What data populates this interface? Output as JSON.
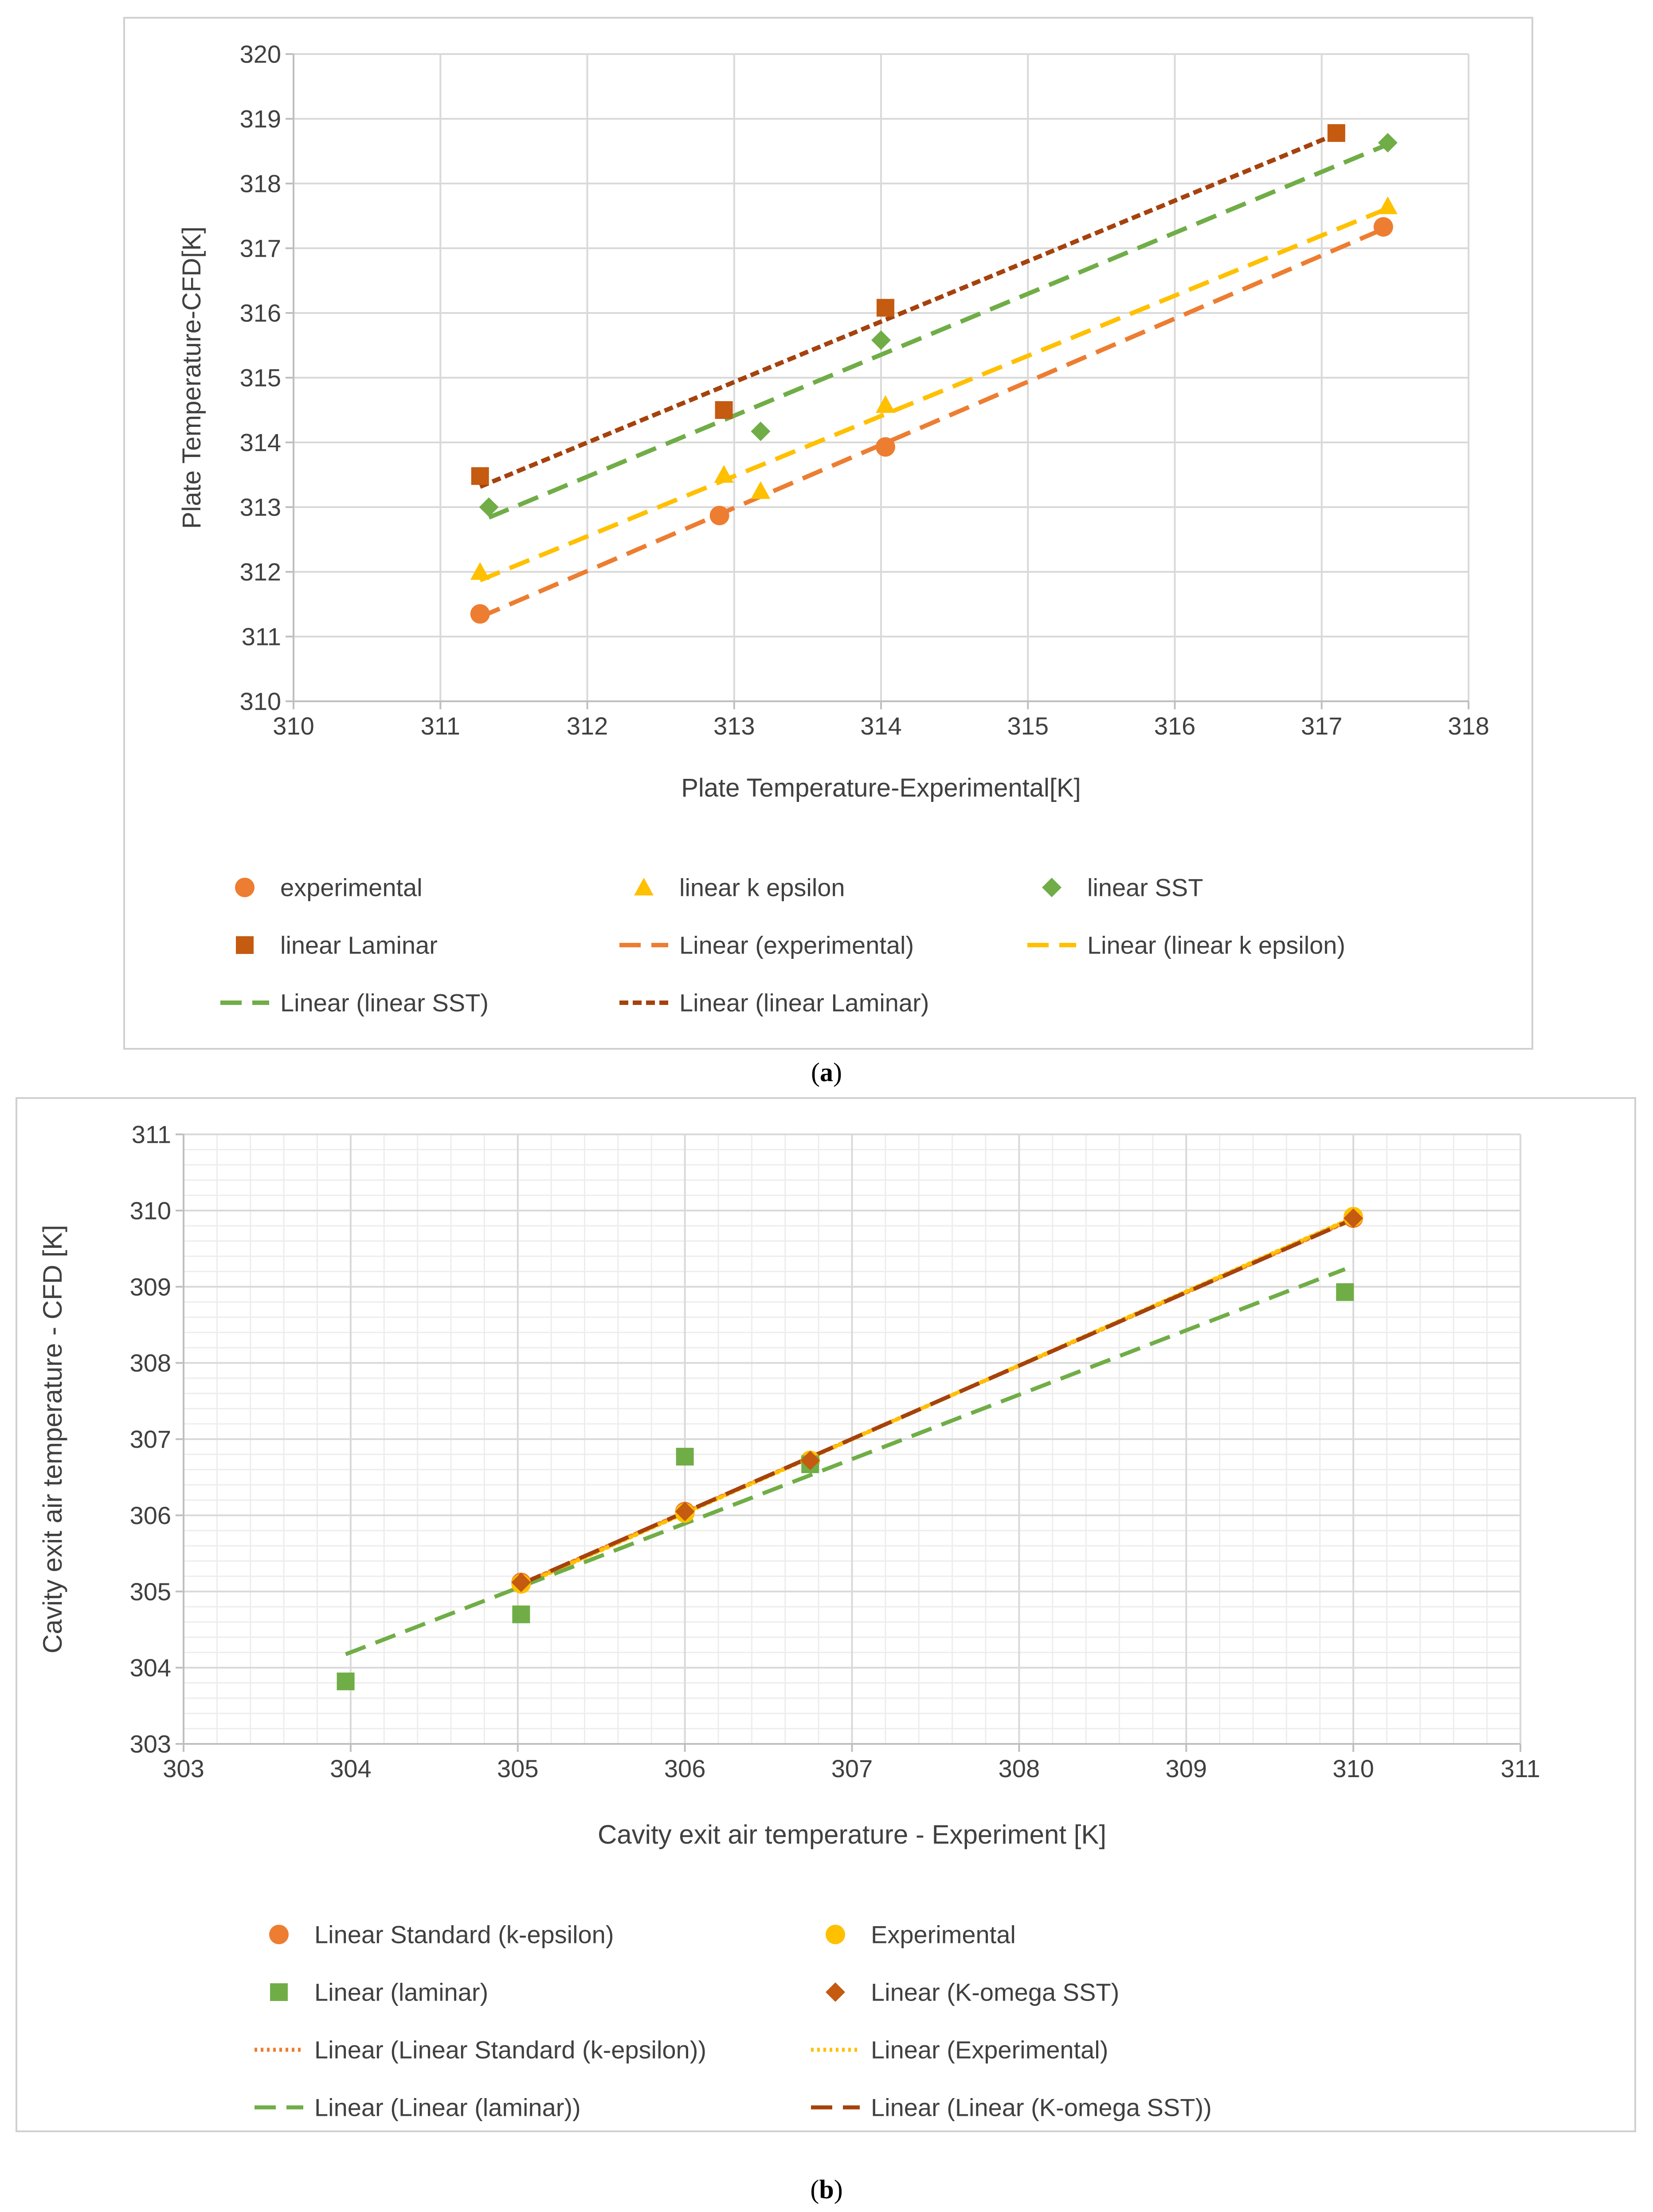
{
  "captions": {
    "a_letter": "a",
    "b_letter": "b"
  },
  "chart_data": [
    {
      "type": "scatter",
      "panel": "a",
      "xlabel": "Plate Temperature-Experimental[K]",
      "ylabel": "Plate Temperature-CFD[K]",
      "xlim": [
        310,
        318
      ],
      "ylim": [
        310,
        320
      ],
      "x_ticks": [
        "310",
        "311",
        "312",
        "313",
        "314",
        "315",
        "316",
        "317",
        "318"
      ],
      "y_ticks": [
        "310",
        "311",
        "312",
        "313",
        "314",
        "315",
        "316",
        "317",
        "318",
        "319",
        "320"
      ],
      "grid": true,
      "legend_position": "bottom",
      "series": [
        {
          "name": "experimental",
          "marker": "circle",
          "color": "#ED7D31",
          "x": [
            311.27,
            312.9,
            314.03,
            317.42
          ],
          "y": [
            311.35,
            312.87,
            313.93,
            317.33
          ],
          "trend": {
            "name": "Linear (experimental)",
            "style": "dash",
            "color": "#ED7D31",
            "x": [
              311.27,
              317.42
            ]
          }
        },
        {
          "name": "linear k epsilon",
          "marker": "triangle",
          "color": "#FFC000",
          "x": [
            311.27,
            312.93,
            313.18,
            314.03,
            317.45
          ],
          "y": [
            312.0,
            313.5,
            313.25,
            314.58,
            317.65
          ],
          "trend": {
            "name": "Linear (linear k epsilon)",
            "style": "dash",
            "color": "#FFC000",
            "x": [
              311.27,
              317.45
            ]
          }
        },
        {
          "name": "linear SST",
          "marker": "diamond",
          "color": "#70AD47",
          "x": [
            311.33,
            313.18,
            314.0,
            317.45
          ],
          "y": [
            313.0,
            314.17,
            315.58,
            318.63
          ],
          "trend": {
            "name": "Linear (linear SST)",
            "style": "dash",
            "color": "#70AD47",
            "x": [
              311.33,
              317.45
            ]
          }
        },
        {
          "name": "linear Laminar",
          "marker": "square",
          "color": "#C55A11",
          "x": [
            311.27,
            312.93,
            314.03,
            317.1
          ],
          "y": [
            313.48,
            314.5,
            316.08,
            318.78
          ],
          "trend": {
            "name": "Linear (linear Laminar)",
            "style": "shortdash",
            "color": "#A5420D",
            "x": [
              311.27,
              317.1
            ]
          }
        }
      ]
    },
    {
      "type": "scatter",
      "panel": "b",
      "xlabel": "Cavity exit air temperature - Experiment [K]",
      "ylabel": "Cavity exit air temperature - CFD [K]",
      "xlim": [
        303,
        311
      ],
      "ylim": [
        303,
        311
      ],
      "x_ticks": [
        "303",
        "304",
        "305",
        "306",
        "307",
        "308",
        "309",
        "310",
        "311"
      ],
      "y_ticks": [
        "303",
        "304",
        "305",
        "306",
        "307",
        "308",
        "309",
        "310",
        "311"
      ],
      "grid": true,
      "legend_position": "bottom",
      "series": [
        {
          "name": "Linear Standard (k-epsilon)",
          "marker": "circle",
          "color": "#ED7D31",
          "x": [
            305.02,
            306.0,
            306.75,
            310.0
          ],
          "y": [
            305.12,
            306.05,
            306.72,
            309.9
          ],
          "trend": {
            "name": "Linear (Linear Standard (k-epsilon))",
            "style": "dot",
            "color": "#ED7D31",
            "x": [
              305.02,
              310.0
            ]
          }
        },
        {
          "name": "Experimental",
          "marker": "circle",
          "color": "#FFC000",
          "x": [
            305.02,
            306.0,
            306.75,
            310.0
          ],
          "y": [
            305.1,
            306.03,
            306.72,
            309.92
          ],
          "trend": {
            "name": "Linear (Experimental)",
            "style": "dot",
            "color": "#FFC000",
            "x": [
              305.02,
              310.0
            ]
          }
        },
        {
          "name": "Linear (laminar)",
          "marker": "square",
          "color": "#70AD47",
          "x": [
            303.97,
            305.02,
            306.0,
            306.75,
            309.95
          ],
          "y": [
            303.82,
            304.7,
            306.77,
            306.67,
            308.93
          ],
          "trend": {
            "name": "Linear (Linear (laminar))",
            "style": "dash",
            "color": "#70AD47",
            "x": [
              303.97,
              309.95
            ]
          }
        },
        {
          "name": "Linear (K-omega SST)",
          "marker": "diamond",
          "color": "#C55A11",
          "x": [
            305.02,
            306.0,
            306.75,
            310.0
          ],
          "y": [
            305.12,
            306.05,
            306.72,
            309.9
          ],
          "trend": {
            "name": "Linear (Linear (K-omega SST))",
            "style": "dash",
            "color": "#A5420D",
            "x": [
              305.02,
              310.0
            ]
          }
        }
      ]
    }
  ]
}
